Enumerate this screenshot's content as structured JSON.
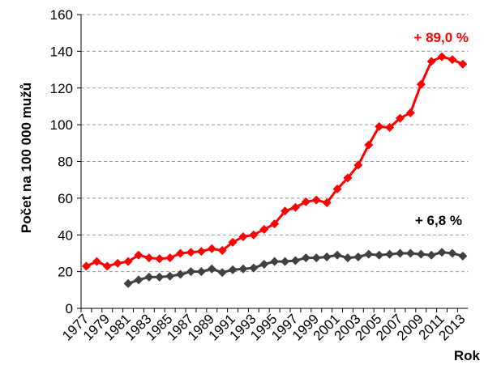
{
  "chart_data": {
    "type": "line",
    "categories": [
      "1977",
      null,
      "1979",
      null,
      "1981",
      null,
      "1983",
      null,
      "1985",
      null,
      "1987",
      null,
      "1989",
      null,
      "1991",
      null,
      "1993",
      null,
      "1995",
      null,
      "1997",
      null,
      "1999",
      null,
      "2001",
      null,
      "2003",
      null,
      "2005",
      null,
      "2007",
      null,
      "2009",
      null,
      "2011",
      null,
      "2013"
    ],
    "series": [
      {
        "color": "#ff0000",
        "values": [
          23,
          25.5,
          23,
          24.5,
          25.5,
          29,
          27.5,
          27,
          27.5,
          30,
          30.5,
          31,
          32.5,
          31.5,
          36,
          39,
          40,
          43,
          46,
          53,
          55,
          58,
          59,
          57.5,
          65,
          71,
          78,
          89,
          99,
          98.5,
          103.5,
          106.5,
          122,
          134.5,
          137,
          135.5,
          133
        ]
      },
      {
        "color": "#404040",
        "values": [
          null,
          null,
          null,
          null,
          13.5,
          15.5,
          17,
          17,
          17.5,
          18.5,
          20,
          20,
          21.5,
          19.5,
          21,
          21.5,
          22,
          24,
          25.5,
          25.5,
          26,
          27.5,
          27.5,
          28,
          29,
          27.5,
          28,
          29.5,
          29,
          29.5,
          30,
          30,
          29.5,
          29,
          30.5,
          30,
          28.5
        ]
      }
    ],
    "ylim": [
      0,
      160
    ],
    "yticks": [
      0,
      20,
      40,
      60,
      80,
      100,
      120,
      140,
      160
    ],
    "ylabel": "Počet na 100 000 mužů",
    "xlabel": "Rok",
    "annotations": [
      {
        "text": "+ 89,0 %",
        "color": "#ff0000"
      },
      {
        "text": "+ 6,8 %",
        "color": "#000000"
      }
    ],
    "grid": true
  }
}
